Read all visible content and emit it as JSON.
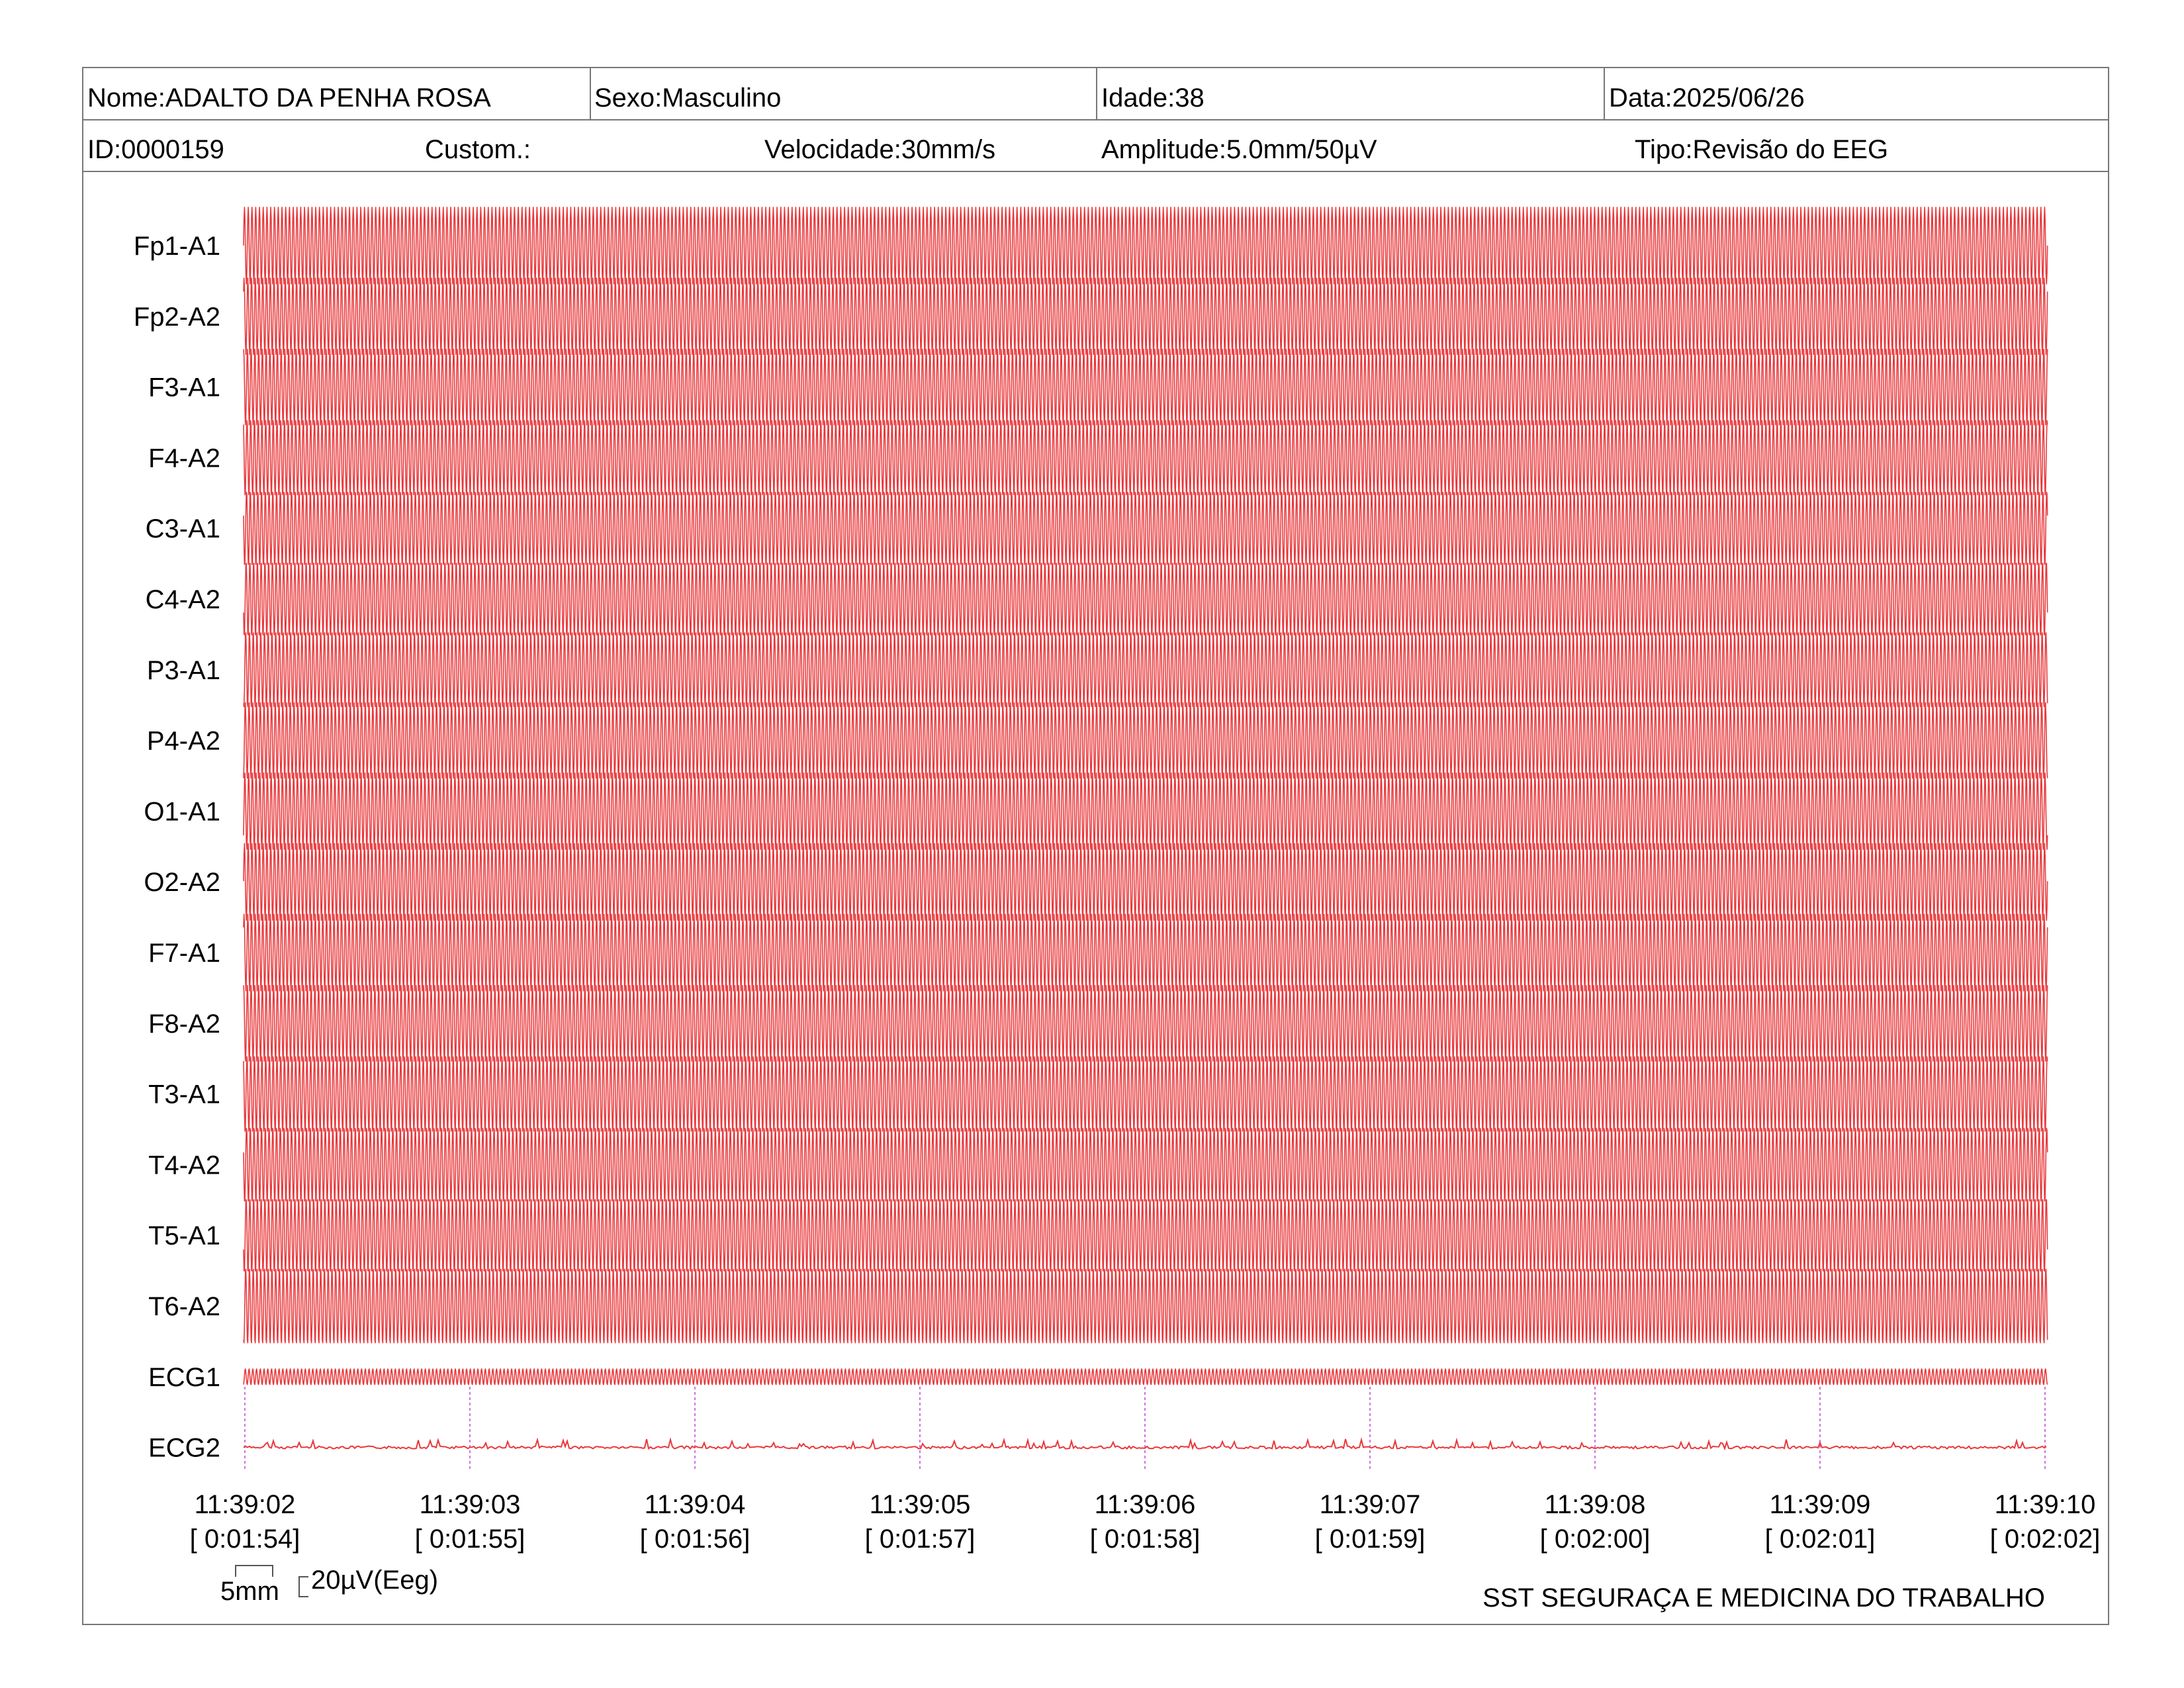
{
  "header": {
    "nome": "Nome:ADALTO DA PENHA ROSA",
    "sexo": "Sexo:Masculino",
    "idade": "Idade:38",
    "data": "Data:2025/06/26",
    "id": "ID:0000159",
    "custom": "Custom.:",
    "velocidade": "Velocidade:30mm/s",
    "amplitude": "Amplitude:5.0mm/50µV",
    "tipo": "Tipo:Revisão do EEG"
  },
  "scale": {
    "time_label": "5mm",
    "amp_label": "20µV(Eeg)"
  },
  "footer": "SST SEGURAÇA E MEDICINA DO TRABALHO",
  "colors": {
    "trace": "#e8383b",
    "time_marker": "#d070e0",
    "border": "#777777"
  },
  "chart_data": {
    "type": "line",
    "title": "",
    "channels": [
      "Fp1-A1",
      "Fp2-A2",
      "F3-A1",
      "F4-A2",
      "C3-A1",
      "C4-A2",
      "P3-A1",
      "P4-A2",
      "O1-A1",
      "O2-A2",
      "F7-A1",
      "F8-A2",
      "T3-A1",
      "T4-A2",
      "T5-A1",
      "T6-A2",
      "ECG1",
      "ECG2"
    ],
    "time_ticks": [
      "11:39:02",
      "11:39:03",
      "11:39:04",
      "11:39:05",
      "11:39:06",
      "11:39:07",
      "11:39:08",
      "11:39:09",
      "11:39:10"
    ],
    "elapsed_ticks": [
      "[ 0:01:54]",
      "[ 0:01:55]",
      "[ 0:01:56]",
      "[ 0:01:57]",
      "[ 0:01:58]",
      "[ 0:01:59]",
      "[ 0:02:00]",
      "[ 0:02:01]",
      "[ 0:02:02]"
    ],
    "duration_s": 8,
    "eeg_frequency_hz": 60,
    "ecg1_frequency_hz": 60,
    "ecg2": "near-flat baseline with small irregular deflections",
    "grid": false
  }
}
